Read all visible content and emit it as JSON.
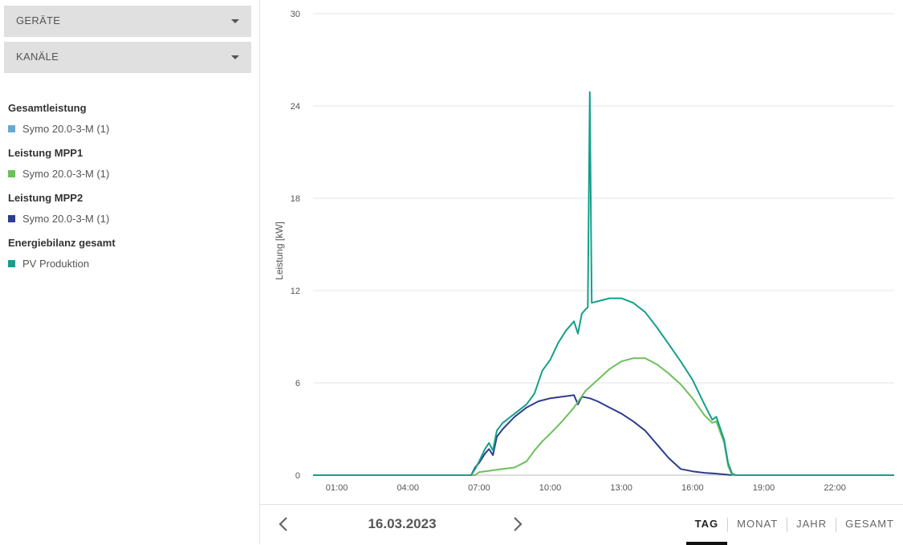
{
  "filters": {
    "devices_label": "GERÄTE",
    "channels_label": "KANÄLE"
  },
  "legend": [
    {
      "title": "Gesamtleistung",
      "items": [
        {
          "label": "Symo 20.0-3-M (1)",
          "color": "#6aa8d0"
        }
      ]
    },
    {
      "title": "Leistung MPP1",
      "items": [
        {
          "label": "Symo 20.0-3-M (1)",
          "color": "#6cc05a"
        }
      ]
    },
    {
      "title": "Leistung MPP2",
      "items": [
        {
          "label": "Symo 20.0-3-M (1)",
          "color": "#2e3d8c"
        }
      ]
    },
    {
      "title": "Energiebilanz gesamt",
      "items": [
        {
          "label": "PV Produktion",
          "color": "#14a08a"
        }
      ]
    }
  ],
  "navigation": {
    "date": "16.03.2023",
    "tabs": [
      {
        "label": "TAG",
        "active": true
      },
      {
        "label": "MONAT",
        "active": false
      },
      {
        "label": "JAHR",
        "active": false
      },
      {
        "label": "GESAMT",
        "active": false
      }
    ]
  },
  "chart_data": {
    "type": "line",
    "xlabel": "",
    "ylabel": "Leistung [kW]",
    "ylim": [
      0,
      30
    ],
    "xlim": [
      "00:00",
      "24:30"
    ],
    "yticks": [
      "0",
      "6",
      "12",
      "18",
      "24",
      "30"
    ],
    "xticks": [
      "01:00",
      "04:00",
      "07:00",
      "10:00",
      "13:00",
      "16:00",
      "19:00",
      "22:00"
    ],
    "grid": true,
    "series": [
      {
        "name": "PV Produktion",
        "color": "#14a08a",
        "points": [
          [
            "00:00",
            0
          ],
          [
            "06:40",
            0
          ],
          [
            "06:50",
            0.4
          ],
          [
            "07:00",
            0.9
          ],
          [
            "07:15",
            1.7
          ],
          [
            "07:25",
            2.1
          ],
          [
            "07:35",
            1.6
          ],
          [
            "07:45",
            2.9
          ],
          [
            "08:00",
            3.4
          ],
          [
            "08:30",
            4.0
          ],
          [
            "09:00",
            4.6
          ],
          [
            "09:20",
            5.3
          ],
          [
            "09:40",
            6.8
          ],
          [
            "10:00",
            7.5
          ],
          [
            "10:20",
            8.6
          ],
          [
            "10:40",
            9.4
          ],
          [
            "11:00",
            10.0
          ],
          [
            "11:10",
            9.2
          ],
          [
            "11:20",
            10.5
          ],
          [
            "11:30",
            10.8
          ],
          [
            "11:35",
            10.9
          ],
          [
            "11:40",
            24.9
          ],
          [
            "11:45",
            11.2
          ],
          [
            "12:00",
            11.3
          ],
          [
            "12:30",
            11.5
          ],
          [
            "13:00",
            11.5
          ],
          [
            "13:30",
            11.2
          ],
          [
            "14:00",
            10.6
          ],
          [
            "14:30",
            9.6
          ],
          [
            "15:00",
            8.5
          ],
          [
            "15:30",
            7.4
          ],
          [
            "16:00",
            6.2
          ],
          [
            "16:30",
            4.6
          ],
          [
            "16:50",
            3.6
          ],
          [
            "17:00",
            3.8
          ],
          [
            "17:20",
            2.3
          ],
          [
            "17:30",
            0.8
          ],
          [
            "17:40",
            0.1
          ],
          [
            "17:50",
            0
          ],
          [
            "24:30",
            0
          ]
        ]
      },
      {
        "name": "Leistung MPP1",
        "color": "#6cc05a",
        "points": [
          [
            "00:00",
            0
          ],
          [
            "06:50",
            0
          ],
          [
            "07:00",
            0.2
          ],
          [
            "07:30",
            0.3
          ],
          [
            "08:00",
            0.4
          ],
          [
            "08:30",
            0.5
          ],
          [
            "09:00",
            0.9
          ],
          [
            "09:20",
            1.6
          ],
          [
            "09:40",
            2.2
          ],
          [
            "10:00",
            2.7
          ],
          [
            "10:30",
            3.5
          ],
          [
            "11:00",
            4.4
          ],
          [
            "11:30",
            5.5
          ],
          [
            "12:00",
            6.2
          ],
          [
            "12:30",
            6.9
          ],
          [
            "13:00",
            7.4
          ],
          [
            "13:30",
            7.6
          ],
          [
            "14:00",
            7.6
          ],
          [
            "14:30",
            7.2
          ],
          [
            "15:00",
            6.6
          ],
          [
            "15:30",
            5.9
          ],
          [
            "16:00",
            5.0
          ],
          [
            "16:30",
            3.9
          ],
          [
            "16:50",
            3.4
          ],
          [
            "17:00",
            3.5
          ],
          [
            "17:20",
            2.1
          ],
          [
            "17:30",
            0.6
          ],
          [
            "17:40",
            0
          ],
          [
            "24:30",
            0
          ]
        ]
      },
      {
        "name": "Leistung MPP2",
        "color": "#2e3d8c",
        "points": [
          [
            "00:00",
            0
          ],
          [
            "06:40",
            0
          ],
          [
            "06:50",
            0.5
          ],
          [
            "07:00",
            0.8
          ],
          [
            "07:15",
            1.4
          ],
          [
            "07:25",
            1.7
          ],
          [
            "07:35",
            1.3
          ],
          [
            "07:45",
            2.5
          ],
          [
            "08:00",
            3.0
          ],
          [
            "08:30",
            3.8
          ],
          [
            "09:00",
            4.4
          ],
          [
            "09:30",
            4.8
          ],
          [
            "10:00",
            5.0
          ],
          [
            "10:30",
            5.1
          ],
          [
            "11:00",
            5.2
          ],
          [
            "11:10",
            4.6
          ],
          [
            "11:20",
            5.1
          ],
          [
            "11:40",
            5.0
          ],
          [
            "12:00",
            4.8
          ],
          [
            "12:30",
            4.4
          ],
          [
            "13:00",
            4.0
          ],
          [
            "13:30",
            3.5
          ],
          [
            "14:00",
            2.9
          ],
          [
            "14:30",
            2.0
          ],
          [
            "15:00",
            1.1
          ],
          [
            "15:30",
            0.4
          ],
          [
            "16:00",
            0.25
          ],
          [
            "16:30",
            0.15
          ],
          [
            "17:00",
            0.1
          ],
          [
            "17:20",
            0.05
          ],
          [
            "17:40",
            0
          ],
          [
            "24:30",
            0
          ]
        ]
      }
    ]
  }
}
